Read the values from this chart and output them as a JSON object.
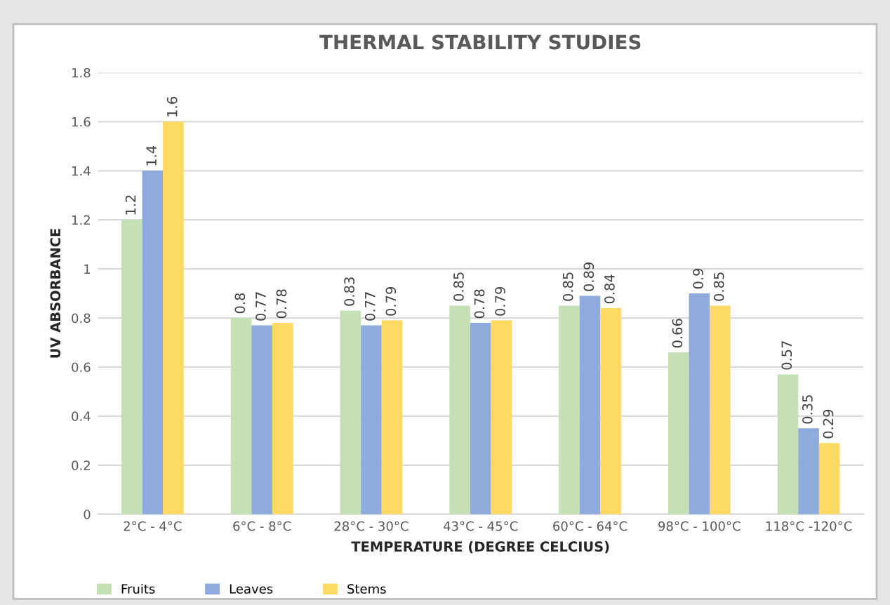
{
  "chart_data": {
    "type": "bar",
    "title": "THERMAL STABILITY STUDIES",
    "xlabel": "TEMPERATURE (DEGREE CELCIUS)",
    "ylabel": "UV ABSORBANCE",
    "categories": [
      "2°C - 4°C",
      "6°C - 8°C",
      "28°C - 30°C",
      "43°C - 45°C",
      "60°C - 64°C",
      "98°C - 100°C",
      "118°C -120°C"
    ],
    "series": [
      {
        "name": "Fruits",
        "color": "#c5e0b4",
        "values": [
          1.2,
          0.8,
          0.83,
          0.85,
          0.85,
          0.66,
          0.57
        ]
      },
      {
        "name": "Leaves",
        "color": "#8faadc",
        "values": [
          1.4,
          0.77,
          0.77,
          0.78,
          0.89,
          0.9,
          0.35
        ]
      },
      {
        "name": "Stems",
        "color": "#ffd966",
        "values": [
          1.6,
          0.78,
          0.79,
          0.79,
          0.84,
          0.85,
          0.29
        ]
      }
    ],
    "ylim": [
      0,
      1.8
    ],
    "yticks": [
      0,
      0.2,
      0.4,
      0.6,
      0.8,
      1,
      1.2,
      1.4,
      1.6,
      1.8
    ],
    "grid": "y",
    "legend": "bottom left",
    "data_labels": true
  }
}
